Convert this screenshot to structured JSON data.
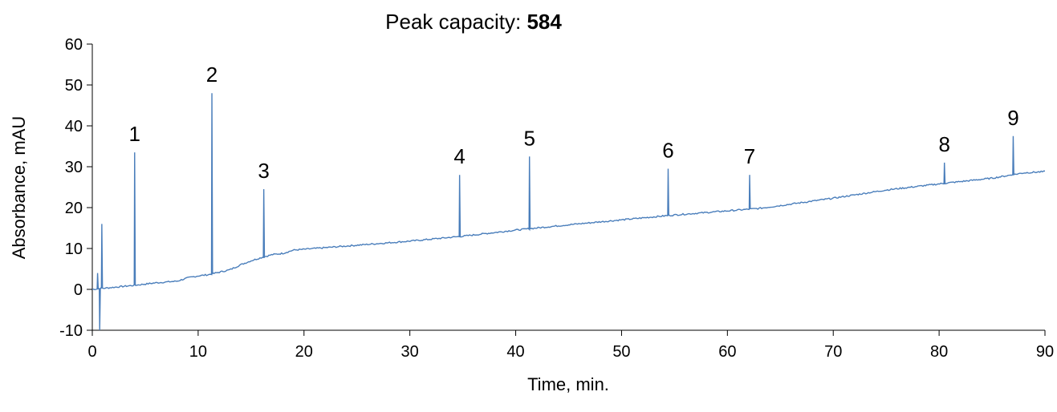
{
  "chart_data": {
    "type": "line",
    "title_prefix": "Peak capacity: ",
    "title_value": "584",
    "xlabel": "Time, min.",
    "ylabel": "Absorbance, mAU",
    "xlim": [
      0,
      90
    ],
    "ylim": [
      -10,
      60
    ],
    "x_ticks": [
      0,
      10,
      20,
      30,
      40,
      50,
      60,
      70,
      80,
      90
    ],
    "y_ticks": [
      -10,
      0,
      10,
      20,
      30,
      40,
      50,
      60
    ],
    "grid": false,
    "line_color": "#4a7ebb",
    "baseline": [
      [
        0,
        0
      ],
      [
        2,
        0.5
      ],
      [
        4,
        1.0
      ],
      [
        6,
        1.6
      ],
      [
        8,
        2.0
      ],
      [
        9,
        2.8
      ],
      [
        10,
        3.3
      ],
      [
        11,
        3.6
      ],
      [
        12,
        4.2
      ],
      [
        13,
        4.8
      ],
      [
        14,
        6.0
      ],
      [
        15,
        7.0
      ],
      [
        16,
        7.8
      ],
      [
        17,
        8.5
      ],
      [
        18,
        8.8
      ],
      [
        19,
        9.6
      ],
      [
        20,
        9.8
      ],
      [
        25,
        10.8
      ],
      [
        30,
        11.8
      ],
      [
        35,
        13.0
      ],
      [
        40,
        14.5
      ],
      [
        45,
        15.8
      ],
      [
        50,
        17.0
      ],
      [
        55,
        18.2
      ],
      [
        60,
        19.2
      ],
      [
        63,
        19.8
      ],
      [
        65,
        20.5
      ],
      [
        70,
        22.3
      ],
      [
        75,
        24.3
      ],
      [
        80,
        25.8
      ],
      [
        85,
        27.2
      ],
      [
        88,
        28.5
      ],
      [
        90,
        28.8
      ]
    ],
    "artifacts": [
      {
        "x": 0.5,
        "y": 4
      },
      {
        "x": 0.7,
        "y": -10
      },
      {
        "x": 0.9,
        "y": 16
      }
    ],
    "peaks": [
      {
        "label": "1",
        "x": 4.0,
        "y": 33.5
      },
      {
        "label": "2",
        "x": 11.3,
        "y": 48
      },
      {
        "label": "3",
        "x": 16.2,
        "y": 24.5
      },
      {
        "label": "4",
        "x": 34.7,
        "y": 28
      },
      {
        "label": "5",
        "x": 41.3,
        "y": 32.5
      },
      {
        "label": "6",
        "x": 54.4,
        "y": 29.5
      },
      {
        "label": "7",
        "x": 62.1,
        "y": 28
      },
      {
        "label": "8",
        "x": 80.5,
        "y": 31
      },
      {
        "label": "9",
        "x": 87.0,
        "y": 37.5
      }
    ]
  }
}
